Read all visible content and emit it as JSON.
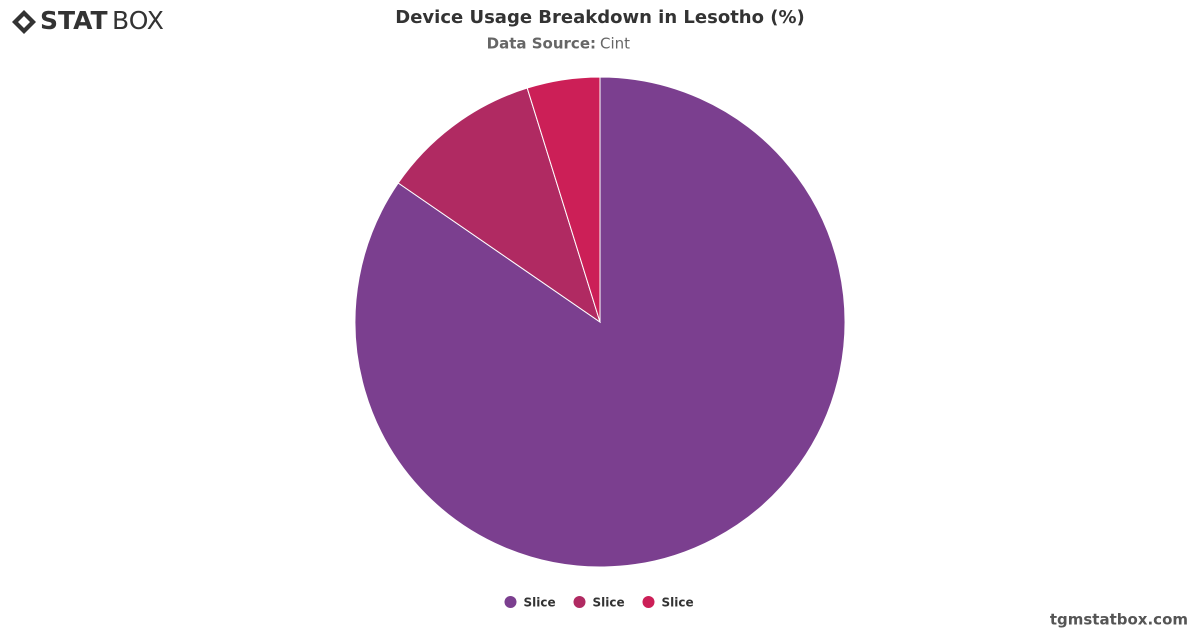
{
  "brand": {
    "logo_bold": "STAT",
    "logo_light": "BOX",
    "website": "tgmstatbox.com"
  },
  "chart_data": {
    "type": "pie",
    "title": "Device Usage Breakdown in Lesotho (%)",
    "subtitle": {
      "label": "Data Source:",
      "value": "Cint"
    },
    "categories": [
      "Slice",
      "Slice",
      "Slice"
    ],
    "values": [
      84.6,
      10.6,
      4.8
    ],
    "colors": [
      "#7b3f8f",
      "#b02a62",
      "#cc1f57"
    ],
    "legend": "bottom"
  }
}
